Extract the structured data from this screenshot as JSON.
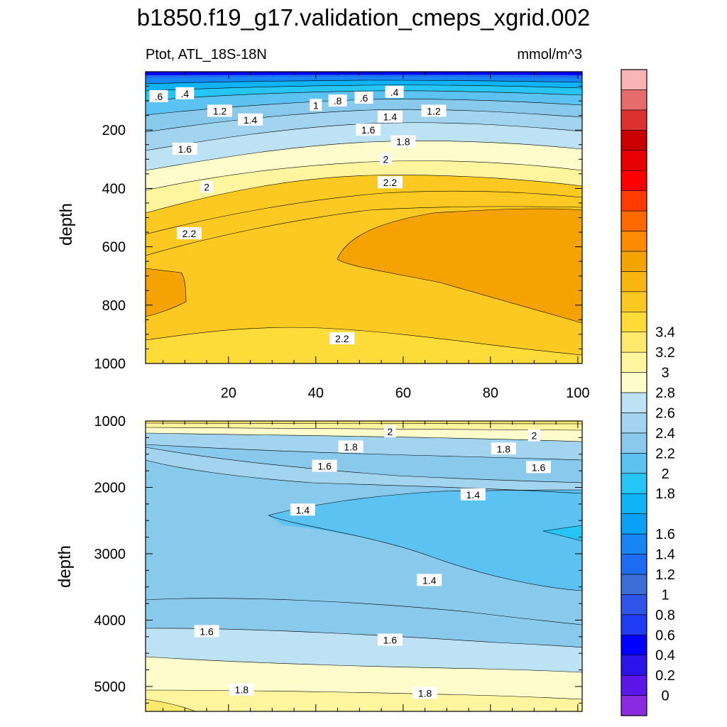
{
  "title": "b1850.f19_g17.validation_cmeps_xgrid.002",
  "colorbar": {
    "tick_labels": [
      "0",
      "0.2",
      "0.4",
      "0.6",
      "0.8",
      "1",
      "1.2",
      "1.4",
      "1.6",
      "1.8",
      "2",
      "2.2",
      "2.4",
      "2.6",
      "2.8",
      "3",
      "3.2",
      "3.4"
    ],
    "colors": [
      "#8a2be2",
      "#5a17e8",
      "#2a14ea",
      "#0000ff",
      "#1f3cf0",
      "#2e55e8",
      "#3b6ed9",
      "#1e6cf2",
      "#1686f5",
      "#0aa0f5",
      "#10b4f6",
      "#25c6f6",
      "#5bc2f1",
      "#88c9ec",
      "#a3d4ef",
      "#bce2f3",
      "#fffccc",
      "#fff59e",
      "#ffe96b",
      "#fddc3a",
      "#fbc921",
      "#f8b610",
      "#f5a303",
      "#ff8c00",
      "#ff6a00",
      "#ff3c00",
      "#ff0000",
      "#e60000",
      "#c80000",
      "#dc3232",
      "#e86c6c",
      "#f9b5b5"
    ]
  },
  "chart_data": [
    {
      "type": "contour",
      "subtitle_left": "Ptot, ATL_18S-18N",
      "subtitle_right": "mmol/m^3",
      "ylabel": "depth",
      "xlim": [
        1,
        101
      ],
      "ylim": [
        1000,
        0
      ],
      "xticks": [
        "20",
        "40",
        "60",
        "80",
        "100"
      ],
      "yticks": [
        "200",
        "400",
        "600",
        "800",
        "1000"
      ],
      "contour_labels": [
        {
          "text": ".6",
          "x": 4,
          "y": 85
        },
        {
          "text": ".4",
          "x": 10,
          "y": 75
        },
        {
          "text": "1.2",
          "x": 18,
          "y": 135
        },
        {
          "text": "1.4",
          "x": 25,
          "y": 165
        },
        {
          "text": "1",
          "x": 40,
          "y": 115
        },
        {
          "text": ".8",
          "x": 45,
          "y": 100
        },
        {
          "text": ".6",
          "x": 51,
          "y": 90
        },
        {
          "text": ".4",
          "x": 58,
          "y": 70
        },
        {
          "text": "1.4",
          "x": 57,
          "y": 155
        },
        {
          "text": "1.2",
          "x": 67,
          "y": 135
        },
        {
          "text": "1.6",
          "x": 52,
          "y": 200
        },
        {
          "text": "1.8",
          "x": 60,
          "y": 240
        },
        {
          "text": "1.6",
          "x": 10,
          "y": 265
        },
        {
          "text": "2",
          "x": 56,
          "y": 300
        },
        {
          "text": "2",
          "x": 15,
          "y": 395
        },
        {
          "text": "2.2",
          "x": 57,
          "y": 380
        },
        {
          "text": "2.2",
          "x": 11,
          "y": 555
        },
        {
          "text": "2.2",
          "x": 46,
          "y": 915
        }
      ]
    },
    {
      "type": "contour",
      "ylabel": "depth",
      "xlim": [
        1,
        101
      ],
      "ylim": [
        5375,
        1000
      ],
      "yticks": [
        "1000",
        "2000",
        "3000",
        "4000",
        "5000"
      ],
      "contour_labels": [
        {
          "text": "2",
          "x": 57,
          "y": 1160
        },
        {
          "text": "2",
          "x": 90,
          "y": 1220
        },
        {
          "text": "1.8",
          "x": 48,
          "y": 1390
        },
        {
          "text": "1.8",
          "x": 83,
          "y": 1420
        },
        {
          "text": "1.6",
          "x": 42,
          "y": 1680
        },
        {
          "text": "1.6",
          "x": 91,
          "y": 1700
        },
        {
          "text": "1.4",
          "x": 76,
          "y": 2110
        },
        {
          "text": "1.4",
          "x": 37,
          "y": 2340
        },
        {
          "text": "1.4",
          "x": 66,
          "y": 3400
        },
        {
          "text": "1.6",
          "x": 15,
          "y": 4170
        },
        {
          "text": "1.6",
          "x": 57,
          "y": 4300
        },
        {
          "text": "1.8",
          "x": 23,
          "y": 5050
        },
        {
          "text": "1.8",
          "x": 65,
          "y": 5100
        }
      ]
    }
  ]
}
